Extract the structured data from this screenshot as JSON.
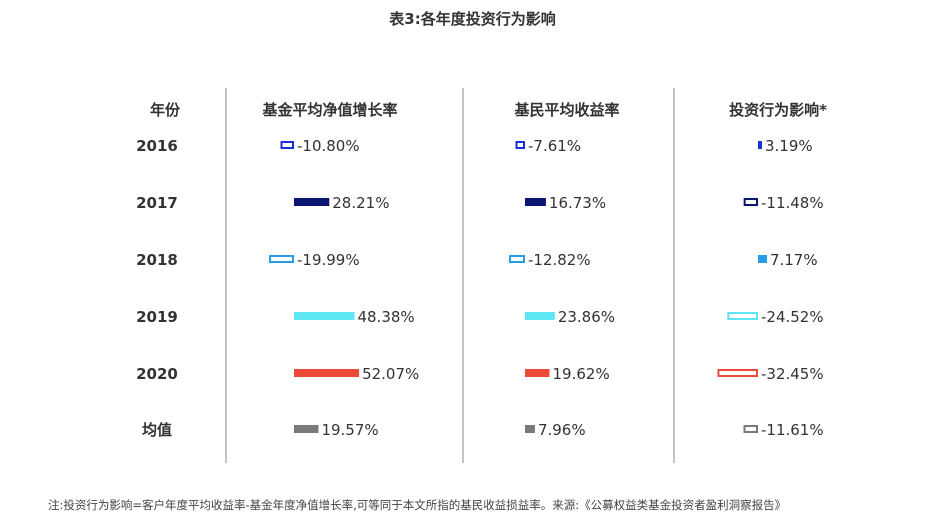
{
  "title": "表3:各年度投资行为影响",
  "note": "注:投资行为影响=客户年度平均收益率-基金年度净值增长率,可等同于本文所指的基民收益损益率。来源:《公募权益类基金投资者盈利洞察报告》",
  "chart_data": {
    "type": "table",
    "row_header": "年份",
    "rows": [
      "2016",
      "2017",
      "2018",
      "2019",
      "2020",
      "均值"
    ],
    "series": [
      {
        "name": "基金平均净值增长率",
        "values": [
          -10.8,
          28.21,
          -19.99,
          48.38,
          52.07,
          19.57
        ],
        "labels": [
          "-10.80%",
          "28.21%",
          "-19.99%",
          "48.38%",
          "52.07%",
          "19.57%"
        ]
      },
      {
        "name": "基民平均收益率",
        "values": [
          -7.61,
          16.73,
          -12.82,
          23.86,
          19.62,
          7.96
        ],
        "labels": [
          "-7.61%",
          "16.73%",
          "-12.82%",
          "23.86%",
          "19.62%",
          "7.96%"
        ]
      },
      {
        "name": "投资行为影响*",
        "values": [
          3.19,
          -11.48,
          7.17,
          -24.52,
          -32.45,
          -11.61
        ],
        "labels": [
          "3.19%",
          "-11.48%",
          "7.17%",
          "-24.52%",
          "-32.45%",
          "-11.61%"
        ]
      }
    ],
    "row_colors": [
      "#1a2fd6",
      "#0b1470",
      "#2a9be8",
      "#5ee6f5",
      "#ee4a3a",
      "#7a7a7a"
    ],
    "grid": false
  }
}
